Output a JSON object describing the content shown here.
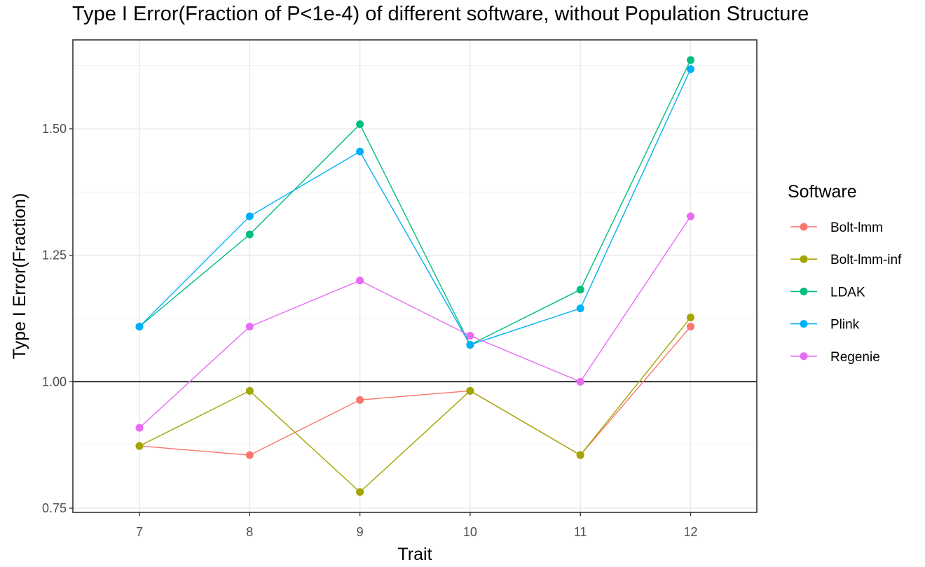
{
  "chart_data": {
    "type": "line",
    "title": "Type I Error(Fraction of P<1e-4) of different software, without Population Structure",
    "xlabel": "Trait",
    "ylabel": "Type I Error(Fraction)",
    "categories": [
      "7",
      "8",
      "9",
      "10",
      "11",
      "12"
    ],
    "xlim": [
      6.4,
      12.6
    ],
    "ylim": [
      0.74,
      1.66
    ],
    "yticks": [
      0.75,
      1.0,
      1.25,
      1.5
    ],
    "ytick_labels": [
      "0.75",
      "1.00",
      "1.25",
      "1.50"
    ],
    "hline": 1.0,
    "grid": true,
    "legend_title": "Software",
    "legend_position": "right",
    "series": [
      {
        "name": "Bolt-lmm",
        "color": "#F8766D",
        "values": [
          0.873,
          0.855,
          0.964,
          0.982,
          0.855,
          1.109
        ]
      },
      {
        "name": "Bolt-lmm-inf",
        "color": "#A3A500",
        "values": [
          0.873,
          0.982,
          0.782,
          0.982,
          0.855,
          1.127
        ]
      },
      {
        "name": "LDAK",
        "color": "#00BF7D",
        "values": [
          1.109,
          1.291,
          1.509,
          1.073,
          1.182,
          1.636
        ]
      },
      {
        "name": "Plink",
        "color": "#00B0F6",
        "values": [
          1.109,
          1.327,
          1.455,
          1.073,
          1.145,
          1.618
        ]
      },
      {
        "name": "Regenie",
        "color": "#E76BF3",
        "values": [
          0.909,
          1.109,
          1.2,
          1.091,
          1.0,
          1.327
        ]
      }
    ]
  }
}
